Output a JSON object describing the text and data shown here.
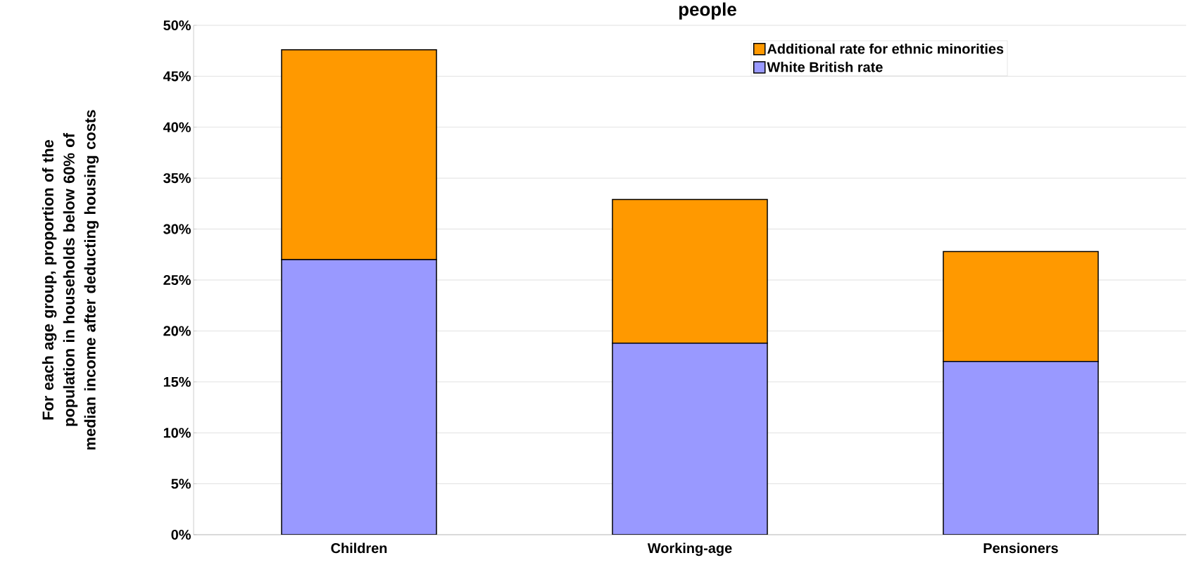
{
  "chart_data": {
    "type": "bar",
    "stacked": true,
    "title": "people",
    "ylabel": "For each age group, proportion of the population in households below 60% of median income after deducting housing costs",
    "categories": [
      "Children",
      "Working-age",
      "Pensioners"
    ],
    "series": [
      {
        "name": "White British rate",
        "color": "#9999ff",
        "values": [
          27.0,
          18.8,
          17.0
        ]
      },
      {
        "name": "Additional rate for ethnic minorities",
        "color": "#ff9900",
        "values": [
          20.6,
          14.1,
          10.8
        ]
      }
    ],
    "ylim": [
      0,
      50
    ],
    "yticks": [
      {
        "value": 0,
        "label": "0%"
      },
      {
        "value": 5,
        "label": "5%"
      },
      {
        "value": 10,
        "label": "10%"
      },
      {
        "value": 15,
        "label": "15%"
      },
      {
        "value": 20,
        "label": "20%"
      },
      {
        "value": 25,
        "label": "25%"
      },
      {
        "value": 30,
        "label": "30%"
      },
      {
        "value": 35,
        "label": "35%"
      },
      {
        "value": 40,
        "label": "40%"
      },
      {
        "value": 45,
        "label": "45%"
      },
      {
        "value": 50,
        "label": "50%"
      }
    ],
    "grid": "y",
    "legend": "top right"
  }
}
